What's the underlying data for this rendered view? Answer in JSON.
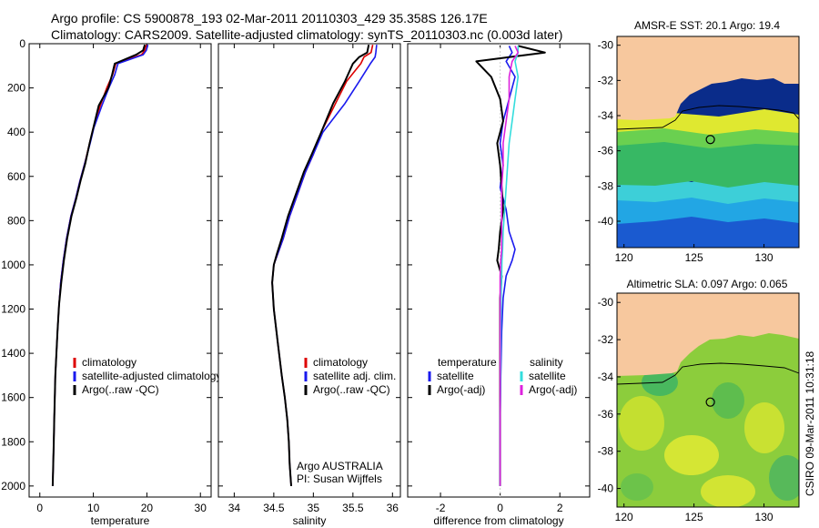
{
  "header": {
    "line1": "Argo profile: CS 5900878_193 02-Mar-2011 20110303_429 35.358S 126.17E",
    "line2": "Climatology: CARS2009. Satellite-adjusted climatology: synTS_20110303.nc (0.003d later)"
  },
  "footer": {
    "credit": "CSIRO 09-Mar-2011 10:31:18"
  },
  "colors": {
    "climatology": "#dd0000",
    "satellite": "#1a1aee",
    "argo": "#000000",
    "salinity_satellite": "#33dddd",
    "salinity_argo": "#dd22dd",
    "land": "#f7c89e"
  },
  "chart_data": [
    {
      "type": "line",
      "xlabel": "temperature",
      "ylabel": "",
      "xlim": [
        -2,
        32
      ],
      "ylim": [
        2050,
        0
      ],
      "x_ticks": [
        0,
        10,
        20,
        30
      ],
      "y_ticks": [
        0,
        200,
        400,
        600,
        800,
        1000,
        1200,
        1400,
        1600,
        1800,
        2000
      ],
      "legend": [
        "climatology",
        "satellite-adjusted climatology",
        "Argo(..raw -QC)"
      ],
      "series": [
        {
          "name": "climatology",
          "color": "#dd0000",
          "x": [
            19.9,
            19.6,
            19.0,
            14.2,
            13.6,
            12.5,
            11.3,
            10.0,
            9.3,
            8.4,
            7.5,
            6.7,
            5.8,
            5.0,
            4.4,
            3.9,
            3.6,
            3.3,
            3.1,
            2.9,
            2.8,
            2.7,
            2.6,
            2.5,
            2.4
          ],
          "y": [
            5,
            30,
            50,
            90,
            140,
            200,
            280,
            380,
            450,
            540,
            620,
            700,
            780,
            880,
            980,
            1080,
            1180,
            1300,
            1400,
            1500,
            1600,
            1700,
            1800,
            1900,
            2000
          ]
        },
        {
          "name": "satellite-adjusted climatology",
          "color": "#1a1aee",
          "x": [
            20.2,
            19.9,
            19.3,
            14.6,
            14.0,
            12.9,
            11.6,
            10.1,
            9.4,
            8.4,
            7.5,
            6.7,
            5.8,
            5.0,
            4.4,
            3.9,
            3.6,
            3.3,
            3.1,
            2.9,
            2.8,
            2.7,
            2.6,
            2.5,
            2.4
          ],
          "y": [
            5,
            30,
            50,
            90,
            140,
            200,
            280,
            380,
            450,
            540,
            620,
            700,
            780,
            880,
            980,
            1080,
            1180,
            1300,
            1400,
            1500,
            1600,
            1700,
            1800,
            1900,
            2000
          ]
        },
        {
          "name": "Argo(..raw -QC)",
          "color": "#000000",
          "x": [
            19.6,
            19.3,
            18.0,
            14.0,
            13.5,
            12.8,
            11.0,
            10.0,
            9.3,
            8.5,
            7.6,
            6.8,
            5.9,
            5.1,
            4.5,
            4.0,
            3.6,
            3.3,
            3.1,
            2.9,
            2.8,
            2.7,
            2.6,
            2.5,
            2.4
          ],
          "y": [
            5,
            30,
            50,
            90,
            140,
            200,
            280,
            380,
            450,
            540,
            620,
            700,
            780,
            880,
            980,
            1080,
            1180,
            1300,
            1400,
            1500,
            1600,
            1700,
            1800,
            1900,
            2000
          ]
        }
      ]
    },
    {
      "type": "line",
      "xlabel": "salinity",
      "xlim": [
        33.8,
        36.1
      ],
      "ylim": [
        2050,
        0
      ],
      "x_ticks": [
        34,
        34.5,
        35,
        35.5,
        36
      ],
      "legend": [
        "climatology",
        "satellite adj. clim.",
        "Argo(..raw -QC)"
      ],
      "annotation": [
        "Argo AUSTRALIA",
        "PI: Susan Wijffels"
      ],
      "series": [
        {
          "name": "climatology",
          "color": "#dd0000",
          "x": [
            35.75,
            35.73,
            35.64,
            35.6,
            35.42,
            35.28,
            35.1,
            35.0,
            34.9,
            34.8,
            34.7,
            34.62,
            34.55,
            34.5,
            34.48,
            34.5,
            34.55,
            34.6,
            34.64,
            34.67,
            34.69,
            34.7,
            34.72
          ],
          "y": [
            5,
            40,
            60,
            90,
            170,
            270,
            400,
            500,
            580,
            680,
            780,
            880,
            950,
            1000,
            1080,
            1200,
            1350,
            1500,
            1600,
            1700,
            1800,
            1900,
            2000
          ]
        },
        {
          "name": "satellite adj. clim.",
          "color": "#1a1aee",
          "x": [
            35.8,
            35.79,
            35.78,
            35.72,
            35.58,
            35.4,
            35.12,
            35.0,
            34.9,
            34.8,
            34.7,
            34.62,
            34.55,
            34.5,
            34.48,
            34.5,
            34.55,
            34.6,
            34.64,
            34.67,
            34.69,
            34.7,
            34.72
          ],
          "y": [
            5,
            40,
            60,
            90,
            170,
            270,
            400,
            500,
            580,
            680,
            780,
            880,
            950,
            1000,
            1080,
            1200,
            1350,
            1500,
            1600,
            1700,
            1800,
            1900,
            2000
          ]
        },
        {
          "name": "Argo(..raw -QC)",
          "color": "#000000",
          "x": [
            35.7,
            35.68,
            35.58,
            35.5,
            35.4,
            35.25,
            35.1,
            34.98,
            34.88,
            34.78,
            34.68,
            34.6,
            34.54,
            34.5,
            34.48,
            34.5,
            34.55,
            34.6,
            34.64,
            34.67,
            34.69,
            34.7,
            34.72
          ],
          "y": [
            5,
            40,
            60,
            90,
            170,
            270,
            400,
            500,
            580,
            680,
            780,
            880,
            950,
            1000,
            1080,
            1200,
            1350,
            1500,
            1600,
            1700,
            1800,
            1900,
            2000
          ]
        }
      ]
    },
    {
      "type": "line",
      "xlabel": "difference from climatology",
      "xlim": [
        -3.1,
        3.0
      ],
      "ylim": [
        2050,
        0
      ],
      "x_ticks": [
        -2,
        0,
        2
      ],
      "legend_headers": [
        "temperature",
        "salinity"
      ],
      "legend": [
        "satellite",
        "Argo(-adj)",
        "satellite",
        "Argo(-adj)"
      ],
      "series": [
        {
          "name": "satellite",
          "group": "temperature",
          "color": "#1a1aee",
          "x": [
            0.3,
            0.4,
            0.2,
            0.5,
            0.3,
            0.1,
            0.0,
            0.1,
            0.0,
            0.2,
            0.3,
            0.5,
            0.4,
            0.2,
            0.1,
            0.05,
            0.02,
            0.0,
            0.0,
            0.0
          ],
          "y": [
            10,
            40,
            80,
            150,
            250,
            350,
            450,
            550,
            650,
            750,
            850,
            930,
            980,
            1050,
            1150,
            1300,
            1500,
            1700,
            1900,
            2000
          ]
        },
        {
          "name": "Argo(-adj)",
          "group": "temperature",
          "color": "#000000",
          "x": [
            0.6,
            1.5,
            -0.8,
            -0.3,
            0.0,
            0.1,
            -0.1,
            0.0,
            0.05,
            0.1,
            0.0,
            -0.05,
            -0.1,
            0.05,
            0.0,
            0.0,
            0.0,
            0.0,
            0.0,
            0.0
          ],
          "y": [
            10,
            40,
            80,
            150,
            250,
            350,
            450,
            550,
            650,
            750,
            850,
            930,
            980,
            1050,
            1150,
            1300,
            1500,
            1700,
            1900,
            2000
          ]
        },
        {
          "name": "satellite",
          "group": "salinity",
          "color": "#33dddd",
          "x": [
            0.6,
            0.6,
            0.5,
            0.6,
            0.5,
            0.4,
            0.3,
            0.25,
            0.2,
            0.15,
            0.1,
            0.08,
            0.06,
            0.05,
            0.03,
            0.02,
            0.01,
            0.0,
            0.0,
            0.0
          ],
          "y": [
            10,
            40,
            80,
            150,
            250,
            350,
            450,
            550,
            650,
            750,
            850,
            930,
            980,
            1050,
            1150,
            1300,
            1500,
            1700,
            1900,
            2000
          ]
        },
        {
          "name": "Argo(-adj)",
          "group": "salinity",
          "color": "#dd22dd",
          "x": [
            0.5,
            0.6,
            0.4,
            0.3,
            0.3,
            0.2,
            0.1,
            0.1,
            0.05,
            0.05,
            0.05,
            0.05,
            0.02,
            0.0,
            0.0,
            0.0,
            0.0,
            0.0,
            0.0,
            0.0
          ],
          "y": [
            10,
            40,
            80,
            150,
            250,
            350,
            450,
            550,
            650,
            750,
            850,
            930,
            980,
            1050,
            1150,
            1300,
            1500,
            1700,
            1900,
            2000
          ]
        }
      ]
    },
    {
      "type": "heatmap",
      "title": "AMSR-E SST: 20.1 Argo: 19.4",
      "x_ticks": [
        120,
        125,
        130
      ],
      "y_ticks": [
        -30,
        -32,
        -34,
        -36,
        -38,
        -40
      ],
      "xlim": [
        119.5,
        132.5
      ],
      "ylim": [
        -41.5,
        -29.5
      ],
      "float_position": {
        "lon": 126.17,
        "lat": -35.358
      }
    },
    {
      "type": "heatmap",
      "title": "Altimetric SLA: 0.097 Argo: 0.065",
      "x_ticks": [
        120,
        125,
        130
      ],
      "y_ticks": [
        -30,
        -32,
        -34,
        -36,
        -38,
        -40
      ],
      "xlim": [
        119.5,
        132.5
      ],
      "ylim": [
        -41.0,
        -29.5
      ],
      "float_position": {
        "lon": 126.17,
        "lat": -35.358
      }
    }
  ]
}
